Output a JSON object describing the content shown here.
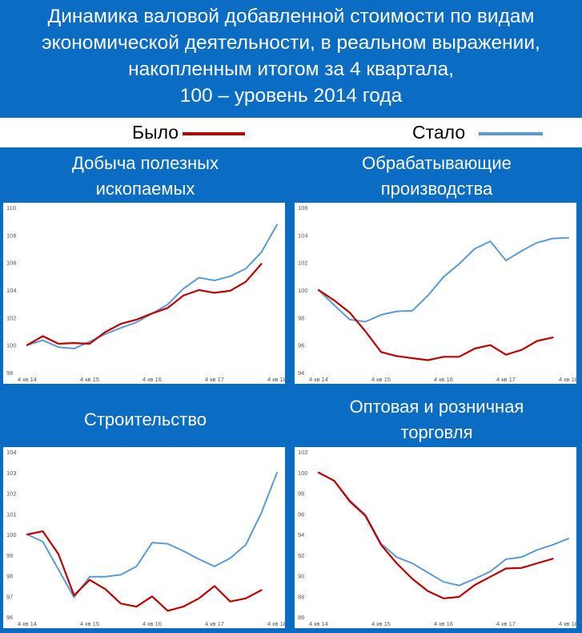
{
  "header": {
    "title_lines": [
      "Динамика валовой добавленной стоимости по видам",
      "экономической деятельности, в реальном выражении,",
      "накопленным итогом за 4 квартала,",
      "100 – уровень 2014 года"
    ]
  },
  "legend": {
    "before_label": "Было",
    "after_label": "Стало",
    "before_color": "#c00000",
    "after_color": "#5b9bd5"
  },
  "colors": {
    "background": "#0a6cc2",
    "before": "#c00000",
    "after": "#5b9bd5"
  },
  "chart_data": [
    {
      "type": "line",
      "title_lines": [
        "Добыча полезных",
        "ископаемых"
      ],
      "x_ticks": [
        "4 кв 14",
        "4 кв 15",
        "4 кв 16",
        "4 кв 17",
        "4 кв 18"
      ],
      "ylim": [
        98,
        110
      ],
      "y_ticks": [
        98,
        100,
        102,
        104,
        106,
        108,
        110
      ],
      "series": [
        {
          "name": "Было",
          "values": [
            100.0,
            100.65,
            100.1,
            100.15,
            100.1,
            100.95,
            101.55,
            101.85,
            102.3,
            102.7,
            103.6,
            104.0,
            103.8,
            103.95,
            104.6,
            105.9
          ]
        },
        {
          "name": "Стало",
          "values": [
            100.0,
            100.35,
            99.85,
            99.75,
            100.25,
            100.8,
            101.25,
            101.65,
            102.3,
            102.95,
            104.1,
            104.9,
            104.7,
            105.0,
            105.55,
            106.75,
            108.75
          ]
        }
      ]
    },
    {
      "type": "line",
      "title_lines": [
        "Обрабатывающие",
        "производства"
      ],
      "x_ticks": [
        "4 кв 14",
        "4 кв 15",
        "4 кв 16",
        "4 кв 17",
        "4 кв 18"
      ],
      "ylim": [
        94,
        106
      ],
      "y_ticks": [
        94,
        96,
        98,
        100,
        102,
        104,
        106
      ],
      "series": [
        {
          "name": "Было",
          "values": [
            100.0,
            99.25,
            98.35,
            97.0,
            95.5,
            95.2,
            95.05,
            94.9,
            95.15,
            95.15,
            95.75,
            96.0,
            95.3,
            95.65,
            96.3,
            96.55
          ]
        },
        {
          "name": "Стало",
          "values": [
            100.0,
            98.9,
            97.85,
            97.7,
            98.2,
            98.45,
            98.5,
            99.6,
            100.95,
            101.9,
            103.0,
            103.55,
            102.15,
            102.85,
            103.45,
            103.75,
            103.8
          ]
        }
      ]
    },
    {
      "type": "line",
      "title_lines": [
        "Строительство"
      ],
      "x_ticks": [
        "4 кв 14",
        "4 кв 15",
        "4 кв 16",
        "4 кв 17",
        "4 кв 18"
      ],
      "ylim": [
        96,
        104
      ],
      "y_ticks": [
        96,
        97,
        98,
        99,
        100,
        101,
        102,
        103,
        104
      ],
      "series": [
        {
          "name": "Было",
          "values": [
            100.0,
            100.15,
            99.05,
            97.05,
            97.8,
            97.35,
            96.65,
            96.5,
            97.0,
            96.3,
            96.5,
            96.9,
            97.5,
            96.75,
            96.9,
            97.3
          ]
        },
        {
          "name": "Стало",
          "values": [
            100.0,
            99.65,
            98.3,
            96.95,
            97.95,
            97.95,
            98.05,
            98.45,
            99.6,
            99.55,
            99.2,
            98.8,
            98.45,
            98.85,
            99.5,
            101.05,
            103.0
          ]
        }
      ]
    },
    {
      "type": "line",
      "title_lines": [
        "Оптовая и розничная",
        "торговля"
      ],
      "x_ticks": [
        "4 кв 14",
        "4 кв 15",
        "4 кв 16",
        "4 кв 17",
        "4 кв 18"
      ],
      "ylim": [
        86,
        102
      ],
      "y_ticks": [
        86,
        88,
        90,
        92,
        94,
        96,
        98,
        100,
        102
      ],
      "series": [
        {
          "name": "Было",
          "values": [
            100.0,
            99.2,
            97.2,
            95.8,
            93.0,
            91.2,
            89.7,
            88.5,
            87.8,
            87.95,
            89.1,
            89.9,
            90.7,
            90.75,
            91.2,
            91.65
          ]
        },
        {
          "name": "Стало",
          "values": [
            100.0,
            99.2,
            97.3,
            95.9,
            93.1,
            91.8,
            91.2,
            90.3,
            89.4,
            89.05,
            89.7,
            90.4,
            91.6,
            91.8,
            92.5,
            93.0,
            93.6
          ]
        }
      ]
    }
  ]
}
